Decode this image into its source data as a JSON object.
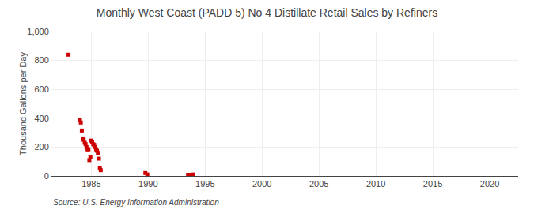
{
  "chart_data": {
    "type": "scatter",
    "title": "Monthly West Coast (PADD 5) No 4 Distillate Retail Sales by Refiners",
    "ylabel": "Thousand Gallons per Day",
    "annotations": [
      "Source: U.S. Energy Information Administration"
    ],
    "color": "#cc0000",
    "marker": "square",
    "grid": true,
    "xlim": [
      1981.5,
      2022.5
    ],
    "ylim": [
      0,
      1000
    ],
    "xticks": [
      1985,
      1990,
      1995,
      2000,
      2005,
      2010,
      2015,
      2020
    ],
    "yticks": [
      0,
      200,
      400,
      600,
      800,
      {
        "value": 1000,
        "label": "1,000"
      }
    ],
    "x": [
      1983.0,
      1984.0,
      1984.08,
      1984.17,
      1984.25,
      1984.33,
      1984.42,
      1984.5,
      1984.58,
      1984.67,
      1984.75,
      1984.83,
      1984.92,
      1985.0,
      1985.08,
      1985.17,
      1985.25,
      1985.33,
      1985.42,
      1985.5,
      1985.58,
      1985.67,
      1985.75,
      1985.83,
      1989.75,
      1989.92,
      1993.5,
      1993.58,
      1993.67,
      1993.75,
      1993.83,
      1993.92
    ],
    "values": [
      840,
      390,
      370,
      315,
      260,
      250,
      230,
      220,
      200,
      185,
      185,
      110,
      130,
      245,
      235,
      220,
      215,
      200,
      185,
      175,
      160,
      120,
      55,
      40,
      20,
      10,
      8,
      7,
      6,
      5,
      8,
      10
    ]
  }
}
